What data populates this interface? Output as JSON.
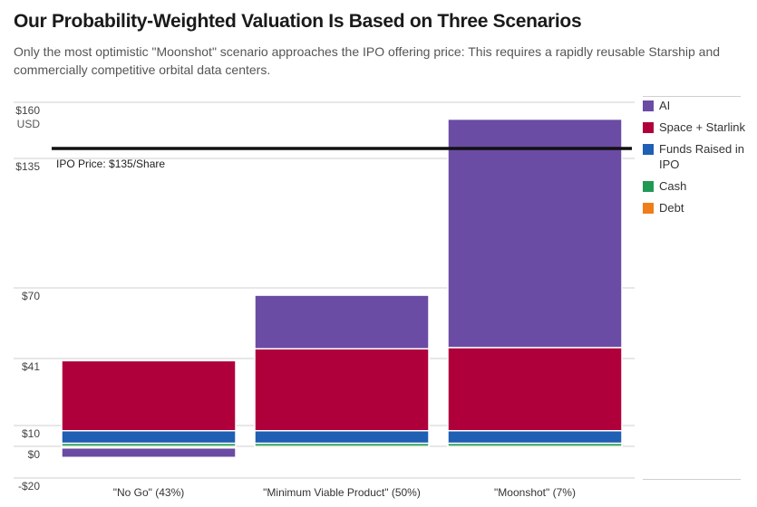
{
  "title": "Our Probability-Weighted Valuation Is Based on Three Scenarios",
  "subtitle": "Only the most optimistic \"Moonshot\" scenario approaches the IPO offering price: This requires a rapidly reusable Starship and commercially competitive orbital data centers.",
  "chart_data": {
    "type": "bar",
    "stacked": true,
    "title": "Our Probability-Weighted Valuation Is Based on Three Scenarios",
    "categories": [
      "\"No Go\" (43%)",
      "\"Minimum Viable Product\" (50%)",
      "\"Moonshot\" (7%)"
    ],
    "series": [
      {
        "name": "Debt",
        "color": "#f07d1a",
        "values": [
          -1,
          -1,
          -1
        ]
      },
      {
        "name": "Cash",
        "color": "#1f9a54",
        "values": [
          1.5,
          1.5,
          1.5
        ]
      },
      {
        "name": "Funds Raised in IPO",
        "color": "#1f5fb4",
        "values": [
          6,
          6,
          6
        ]
      },
      {
        "name": "Space + Starlink",
        "color": "#b0003c",
        "values": [
          32.5,
          37.5,
          38
        ]
      },
      {
        "name": "AI",
        "color": "#6a4ca4",
        "values": [
          -6,
          22,
          107
        ]
      }
    ],
    "yticks": [
      {
        "value": 160,
        "label": "$160"
      },
      {
        "value": 135,
        "label": "$135"
      },
      {
        "value": 70,
        "label": "$70"
      },
      {
        "value": 41,
        "label": "$41"
      },
      {
        "value": 10,
        "label": "$10"
      },
      {
        "value": 0,
        "label": "$0"
      },
      {
        "value": -20,
        "label": "-$20"
      }
    ],
    "yunit": "USD",
    "ylim": [
      -20,
      160
    ],
    "reference_line": {
      "value": 135,
      "label": "IPO Price: $135/Share"
    },
    "legend_position": "right",
    "legend": [
      "AI",
      "Space + Starlink",
      "Funds Raised in IPO",
      "Cash",
      "Debt"
    ]
  }
}
